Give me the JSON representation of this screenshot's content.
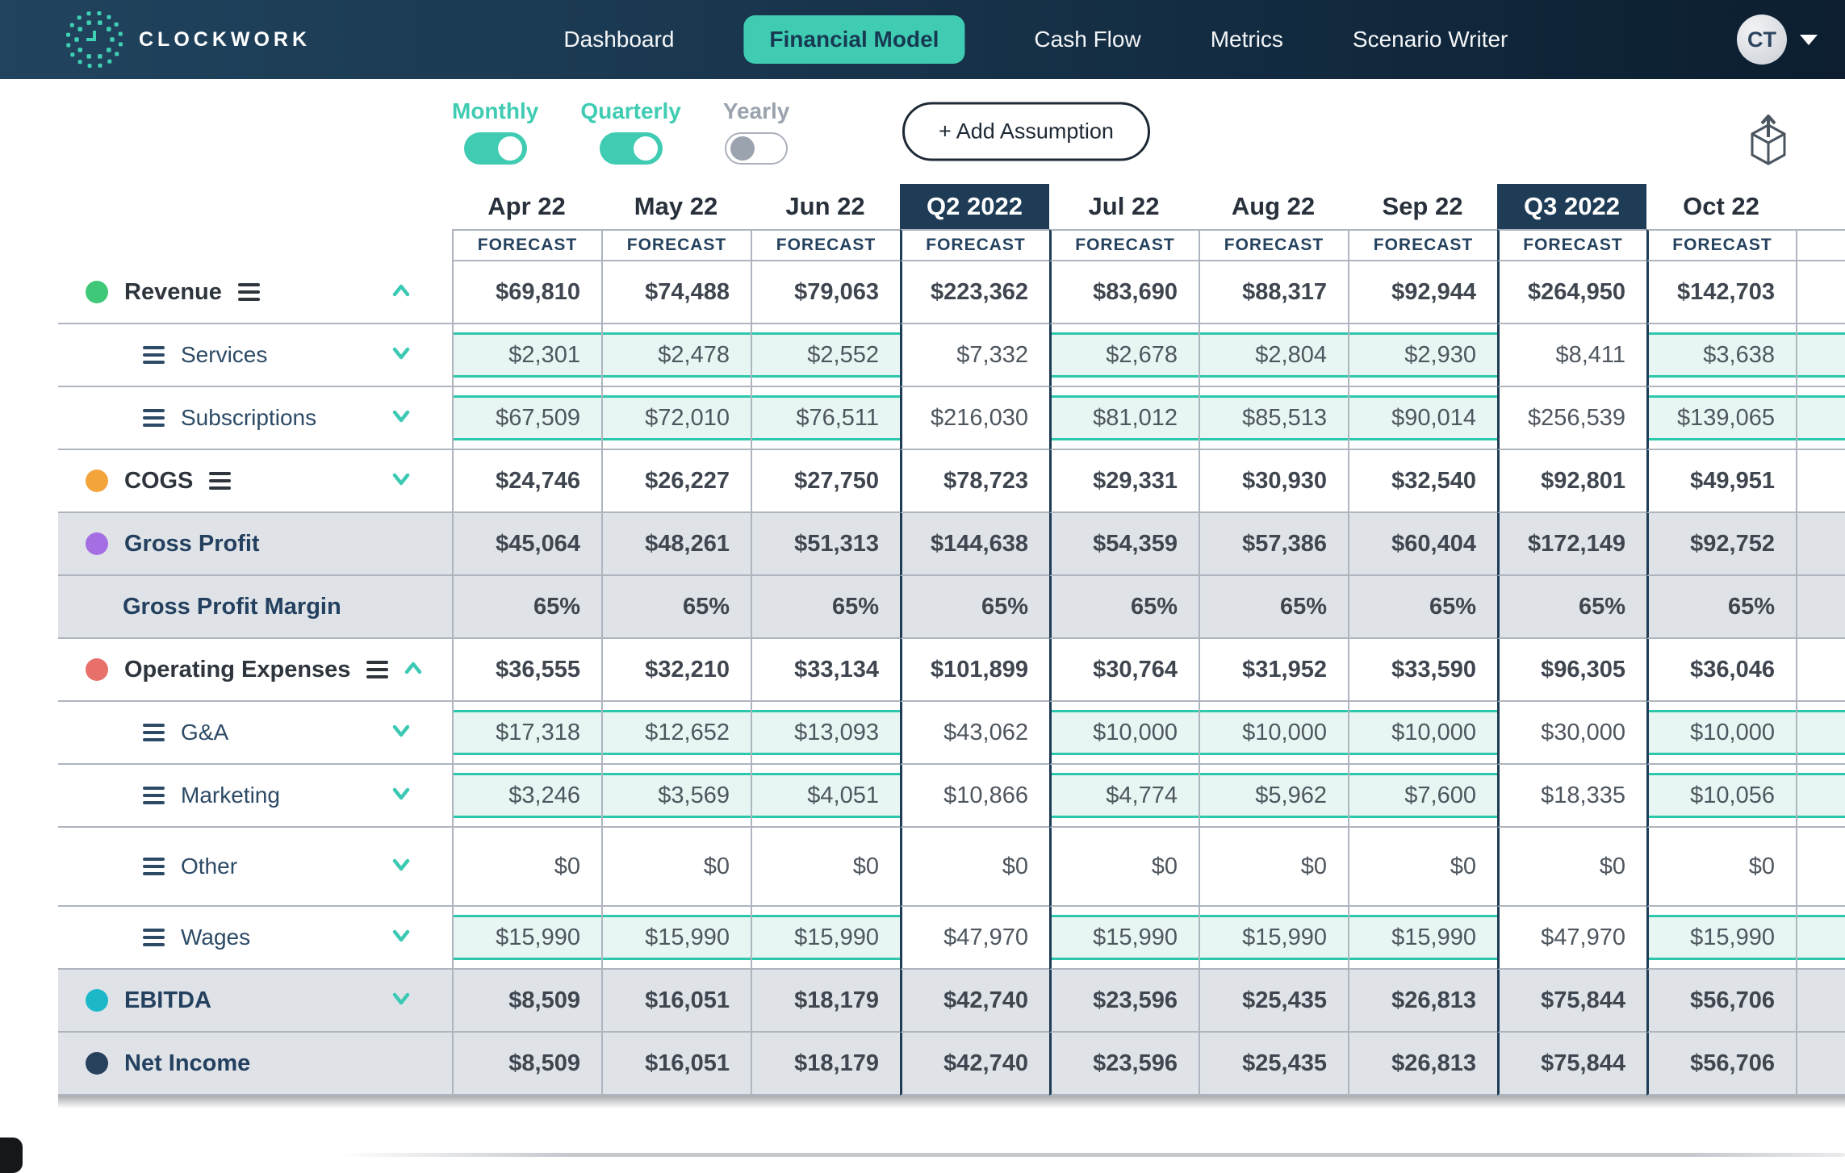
{
  "nav": {
    "brand": "CLOCKWORK",
    "items": [
      {
        "label": "Dashboard",
        "active": false
      },
      {
        "label": "Financial Model",
        "active": true
      },
      {
        "label": "Cash Flow",
        "active": false
      },
      {
        "label": "Metrics",
        "active": false
      },
      {
        "label": "Scenario Writer",
        "active": false
      }
    ],
    "avatar_initials": "CT",
    "accent_color": "#3fccb2",
    "bar_color": "#16324a"
  },
  "controls": {
    "toggles": [
      {
        "label": "Monthly",
        "on": true
      },
      {
        "label": "Quarterly",
        "on": true
      },
      {
        "label": "Yearly",
        "on": false
      }
    ],
    "add_button_label": "+ Add Assumption",
    "export_icon": "box-export-icon"
  },
  "table": {
    "subheader": "FORECAST",
    "quarter_header_color": "#1e3c55",
    "editable_cell_border": "#2cc7ac",
    "editable_cell_bg": "#e7f6f2",
    "summary_row_bg": "#dfe3e8",
    "columns": [
      {
        "label": "Apr 22",
        "type": "month"
      },
      {
        "label": "May 22",
        "type": "month"
      },
      {
        "label": "Jun 22",
        "type": "month"
      },
      {
        "label": "Q2 2022",
        "type": "quarter"
      },
      {
        "label": "Jul 22",
        "type": "month"
      },
      {
        "label": "Aug 22",
        "type": "month"
      },
      {
        "label": "Sep 22",
        "type": "month"
      },
      {
        "label": "Q3 2022",
        "type": "quarter"
      },
      {
        "label": "Oct 22",
        "type": "month"
      },
      {
        "label": "",
        "type": "partial"
      }
    ],
    "rows": [
      {
        "label": "Revenue",
        "kind": "parent",
        "dot": "#3fc878",
        "menu": true,
        "chevron": "up",
        "editable": false,
        "values": [
          "$69,810",
          "$74,488",
          "$79,063",
          "$223,362",
          "$83,690",
          "$88,317",
          "$92,944",
          "$264,950",
          "$142,703"
        ]
      },
      {
        "label": "Services",
        "kind": "child",
        "dot": null,
        "menu": true,
        "chevron": "down",
        "editable": true,
        "values": [
          "$2,301",
          "$2,478",
          "$2,552",
          "$7,332",
          "$2,678",
          "$2,804",
          "$2,930",
          "$8,411",
          "$3,638"
        ]
      },
      {
        "label": "Subscriptions",
        "kind": "child",
        "dot": null,
        "menu": true,
        "chevron": "down",
        "editable": true,
        "values": [
          "$67,509",
          "$72,010",
          "$76,511",
          "$216,030",
          "$81,012",
          "$85,513",
          "$90,014",
          "$256,539",
          "$139,065"
        ]
      },
      {
        "label": "COGS",
        "kind": "parent",
        "dot": "#f3a43b",
        "menu": true,
        "chevron": "down",
        "editable": false,
        "values": [
          "$24,746",
          "$26,227",
          "$27,750",
          "$78,723",
          "$29,331",
          "$30,930",
          "$32,540",
          "$92,801",
          "$49,951"
        ]
      },
      {
        "label": "Gross Profit",
        "kind": "summary",
        "dot": "#a56ee3",
        "menu": false,
        "chevron": null,
        "editable": false,
        "values": [
          "$45,064",
          "$48,261",
          "$51,313",
          "$144,638",
          "$54,359",
          "$57,386",
          "$60,404",
          "$172,149",
          "$92,752"
        ]
      },
      {
        "label": "Gross Profit Margin",
        "kind": "summary",
        "dot": null,
        "menu": false,
        "chevron": null,
        "editable": false,
        "values": [
          "65%",
          "65%",
          "65%",
          "65%",
          "65%",
          "65%",
          "65%",
          "65%",
          "65%"
        ]
      },
      {
        "label": "Operating Expenses",
        "kind": "parent",
        "dot": "#e8706a",
        "menu": true,
        "chevron": "up",
        "editable": false,
        "values": [
          "$36,555",
          "$32,210",
          "$33,134",
          "$101,899",
          "$30,764",
          "$31,952",
          "$33,590",
          "$96,305",
          "$36,046"
        ]
      },
      {
        "label": "G&A",
        "kind": "child",
        "dot": null,
        "menu": true,
        "chevron": "down",
        "editable": true,
        "values": [
          "$17,318",
          "$12,652",
          "$13,093",
          "$43,062",
          "$10,000",
          "$10,000",
          "$10,000",
          "$30,000",
          "$10,000"
        ]
      },
      {
        "label": "Marketing",
        "kind": "child",
        "dot": null,
        "menu": true,
        "chevron": "down",
        "editable": true,
        "values": [
          "$3,246",
          "$3,569",
          "$4,051",
          "$10,866",
          "$4,774",
          "$5,962",
          "$7,600",
          "$18,335",
          "$10,056"
        ]
      },
      {
        "label": "Other",
        "kind": "child",
        "dot": null,
        "menu": true,
        "chevron": "down",
        "editable": false,
        "values": [
          "$0",
          "$0",
          "$0",
          "$0",
          "$0",
          "$0",
          "$0",
          "$0",
          "$0"
        ]
      },
      {
        "label": "Wages",
        "kind": "child",
        "dot": null,
        "menu": true,
        "chevron": "down",
        "editable": true,
        "values": [
          "$15,990",
          "$15,990",
          "$15,990",
          "$47,970",
          "$15,990",
          "$15,990",
          "$15,990",
          "$47,970",
          "$15,990"
        ]
      },
      {
        "label": "EBITDA",
        "kind": "summary",
        "dot": "#1cb8c9",
        "menu": false,
        "chevron": "down",
        "editable": false,
        "values": [
          "$8,509",
          "$16,051",
          "$18,179",
          "$42,740",
          "$23,596",
          "$25,435",
          "$26,813",
          "$75,844",
          "$56,706"
        ]
      },
      {
        "label": "Net Income",
        "kind": "summary",
        "dot": "#27405c",
        "menu": false,
        "chevron": null,
        "editable": false,
        "values": [
          "$8,509",
          "$16,051",
          "$18,179",
          "$42,740",
          "$23,596",
          "$25,435",
          "$26,813",
          "$75,844",
          "$56,706"
        ]
      }
    ]
  }
}
